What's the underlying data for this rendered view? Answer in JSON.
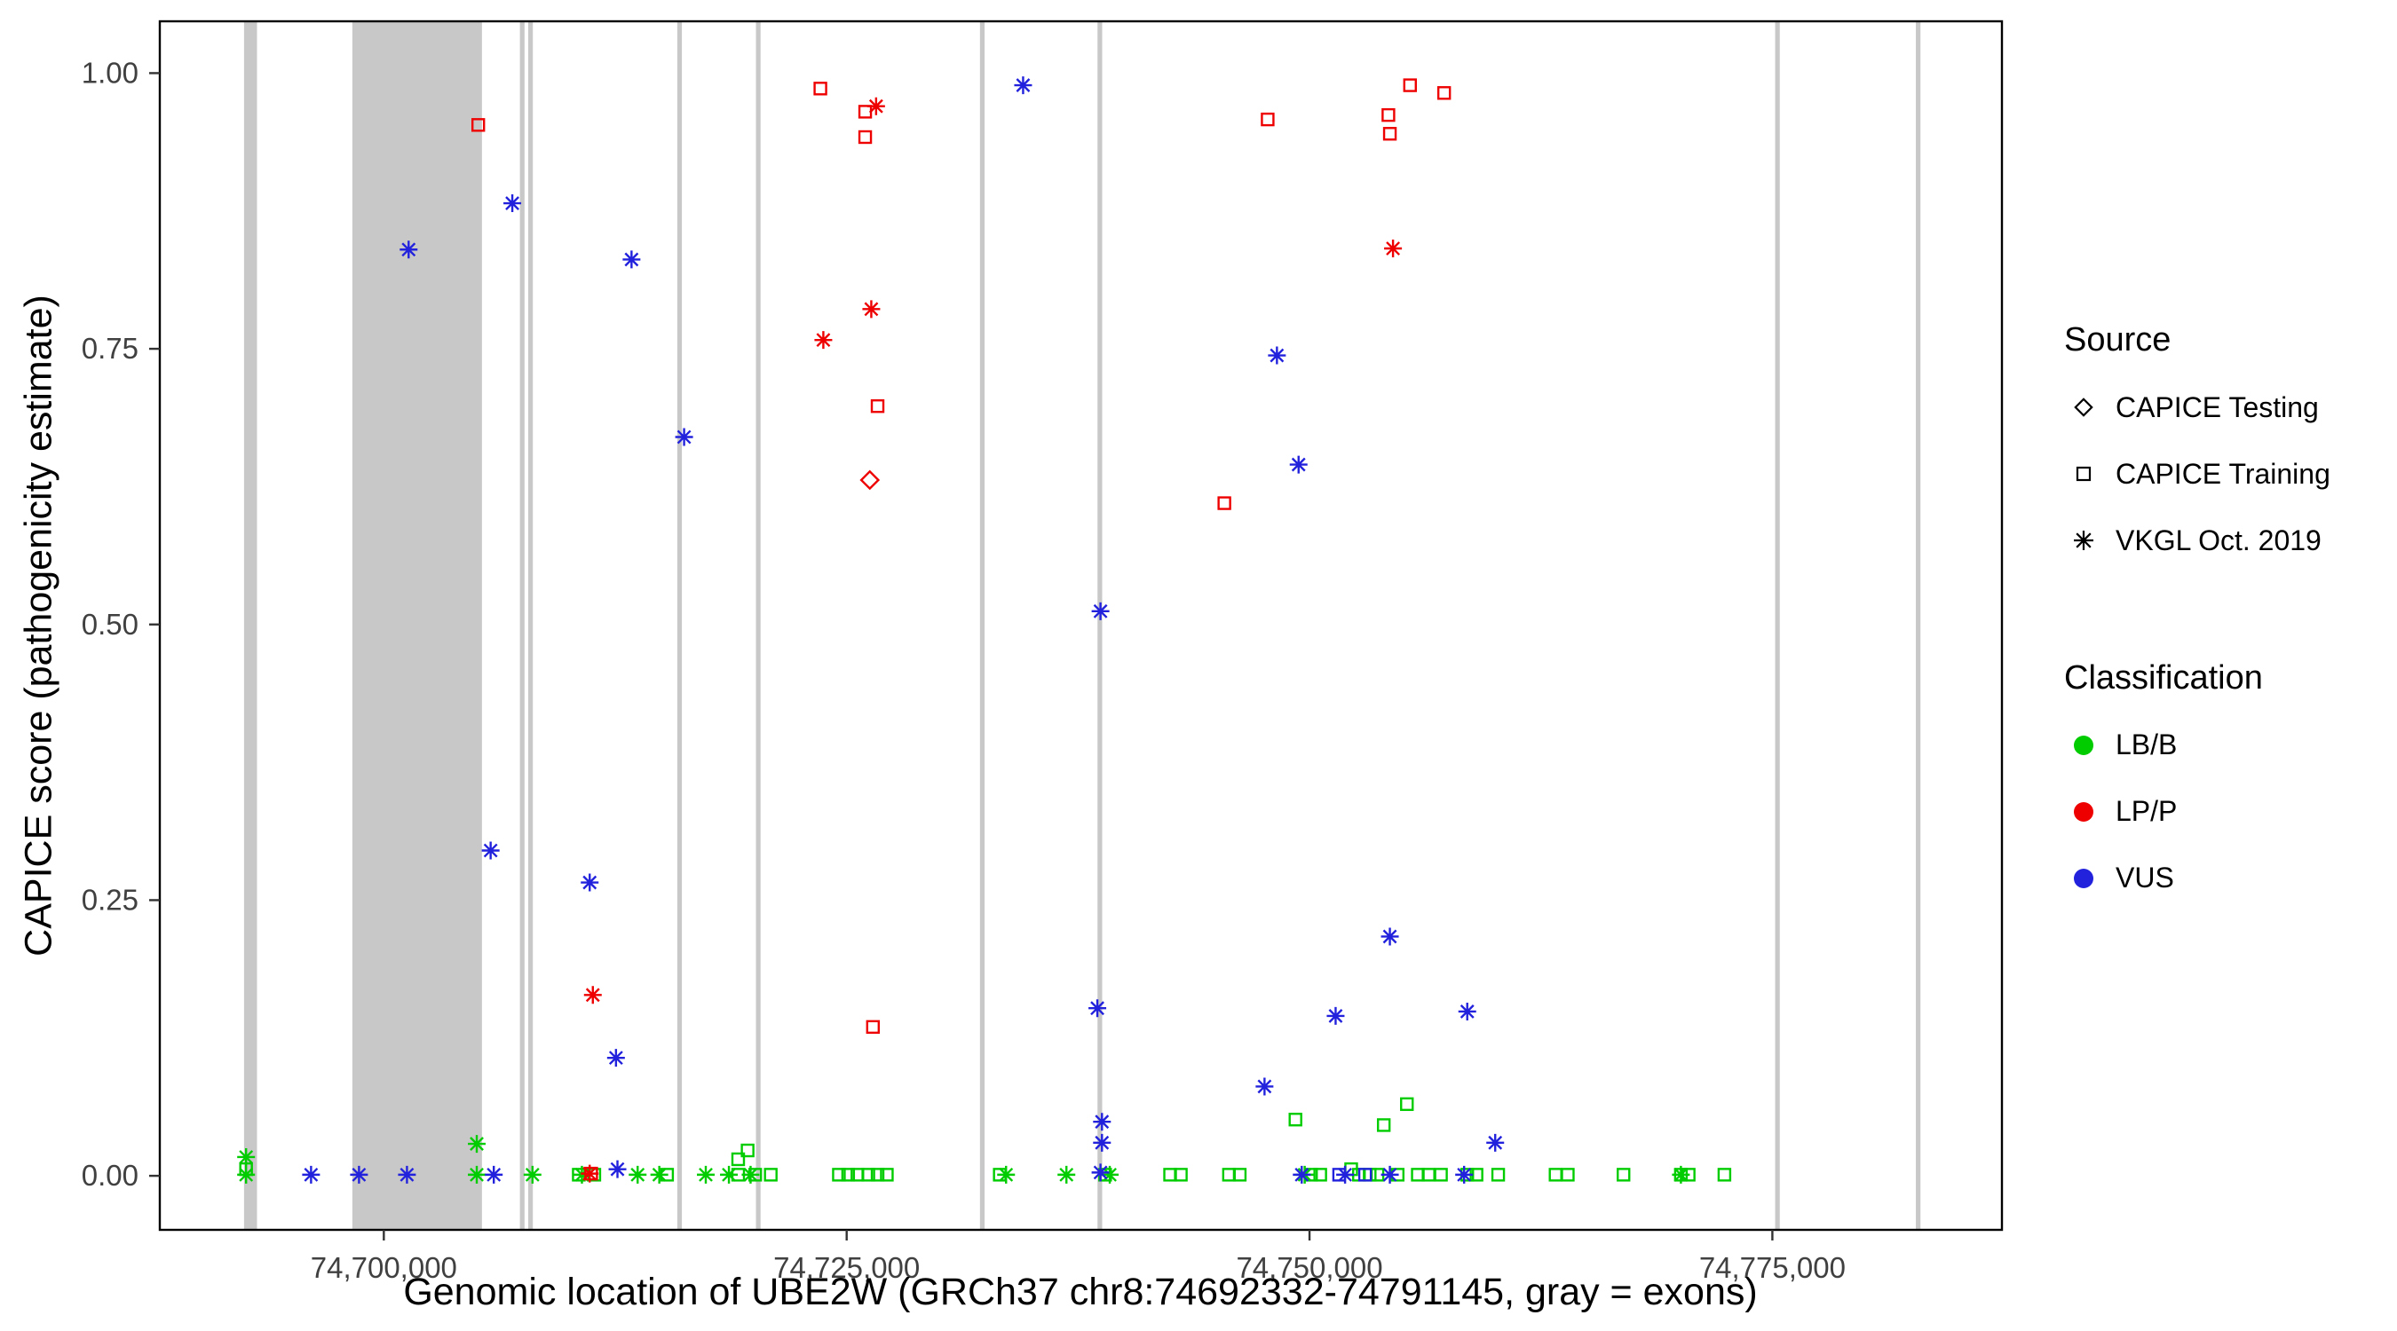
{
  "chart_data": {
    "type": "scatter",
    "title": "",
    "xlabel": "Genomic location of UBE2W (GRCh37 chr8:74692332-74791145, gray = exons)",
    "ylabel": "CAPICE score (pathogenicity estimate)",
    "x_domain": [
      74687900,
      74787400
    ],
    "y_domain": [
      -0.049,
      1.047
    ],
    "x_ticks": [
      {
        "value": 74700000,
        "label": "74,700,000"
      },
      {
        "value": 74725000,
        "label": "74,725,000"
      },
      {
        "value": 74750000,
        "label": "74,750,000"
      },
      {
        "value": 74775000,
        "label": "74,775,000"
      }
    ],
    "y_ticks": [
      {
        "value": 0.0,
        "label": "0.00"
      },
      {
        "value": 0.25,
        "label": "0.25"
      },
      {
        "value": 0.5,
        "label": "0.50"
      },
      {
        "value": 0.75,
        "label": "0.75"
      },
      {
        "value": 1.0,
        "label": "1.00"
      }
    ],
    "grid": false,
    "legend_position": "right",
    "colors": {
      "LB/B": "#00CC00",
      "LP/P": "#EE0000",
      "VUS": "#2222DD",
      "exon": "#C8C8C8"
    },
    "exons": [
      {
        "start": 74692450,
        "end": 74693150
      },
      {
        "start": 74698300,
        "end": 74705300
      },
      {
        "start": 74707350,
        "end": 74707600
      },
      {
        "start": 74707800,
        "end": 74708050
      },
      {
        "start": 74715850,
        "end": 74716100
      },
      {
        "start": 74720100,
        "end": 74720350
      },
      {
        "start": 74732200,
        "end": 74732450
      },
      {
        "start": 74738550,
        "end": 74738800
      },
      {
        "start": 74775150,
        "end": 74775400
      },
      {
        "start": 74782750,
        "end": 74783000
      }
    ],
    "point_format": [
      "x_genomic_position",
      "y_capice_score",
      "source",
      "classification"
    ],
    "points": [
      [
        74692560,
        0.006,
        "training",
        "LB/B"
      ],
      [
        74710530,
        0.001,
        "training",
        "LB/B"
      ],
      [
        74711370,
        0.001,
        "training",
        "LB/B"
      ],
      [
        74715300,
        0.001,
        "training",
        "LB/B"
      ],
      [
        74719140,
        0.015,
        "training",
        "LB/B"
      ],
      [
        74719650,
        0.023,
        "training",
        "LB/B"
      ],
      [
        74719140,
        0.001,
        "training",
        "LB/B"
      ],
      [
        74720060,
        0.001,
        "training",
        "LB/B"
      ],
      [
        74720900,
        0.001,
        "training",
        "LB/B"
      ],
      [
        74724580,
        0.001,
        "training",
        "LB/B"
      ],
      [
        74725080,
        0.001,
        "training",
        "LB/B"
      ],
      [
        74725580,
        0.001,
        "training",
        "LB/B"
      ],
      [
        74726170,
        0.001,
        "training",
        "LB/B"
      ],
      [
        74726670,
        0.001,
        "training",
        "LB/B"
      ],
      [
        74727170,
        0.001,
        "training",
        "LB/B"
      ],
      [
        74733270,
        0.001,
        "training",
        "LB/B"
      ],
      [
        74738960,
        0.001,
        "training",
        "LB/B"
      ],
      [
        74742470,
        0.001,
        "training",
        "LB/B"
      ],
      [
        74743050,
        0.001,
        "training",
        "LB/B"
      ],
      [
        74745650,
        0.001,
        "training",
        "LB/B"
      ],
      [
        74746230,
        0.001,
        "training",
        "LB/B"
      ],
      [
        74749240,
        0.051,
        "training",
        "LB/B"
      ],
      [
        74750080,
        0.001,
        "training",
        "LB/B"
      ],
      [
        74750580,
        0.001,
        "training",
        "LB/B"
      ],
      [
        74752250,
        0.006,
        "training",
        "LB/B"
      ],
      [
        74752670,
        0.001,
        "training",
        "LB/B"
      ],
      [
        74753250,
        0.001,
        "training",
        "LB/B"
      ],
      [
        74753670,
        0.001,
        "training",
        "LB/B"
      ],
      [
        74754010,
        0.046,
        "training",
        "LB/B"
      ],
      [
        74754760,
        0.001,
        "training",
        "LB/B"
      ],
      [
        74755260,
        0.065,
        "training",
        "LB/B"
      ],
      [
        74755850,
        0.001,
        "training",
        "LB/B"
      ],
      [
        74756430,
        0.001,
        "training",
        "LB/B"
      ],
      [
        74757100,
        0.001,
        "training",
        "LB/B"
      ],
      [
        74758520,
        0.001,
        "training",
        "LB/B"
      ],
      [
        74759020,
        0.001,
        "training",
        "LB/B"
      ],
      [
        74760190,
        0.001,
        "training",
        "LB/B"
      ],
      [
        74763290,
        0.001,
        "training",
        "LB/B"
      ],
      [
        74763950,
        0.001,
        "training",
        "LB/B"
      ],
      [
        74766960,
        0.001,
        "training",
        "LB/B"
      ],
      [
        74770060,
        0.001,
        "training",
        "LB/B"
      ],
      [
        74770480,
        0.001,
        "training",
        "LB/B"
      ],
      [
        74772410,
        0.001,
        "training",
        "LB/B"
      ],
      [
        74692560,
        0.017,
        "vkgl",
        "LB/B"
      ],
      [
        74692560,
        0.001,
        "vkgl",
        "LB/B"
      ],
      [
        74705020,
        0.029,
        "vkgl",
        "LB/B"
      ],
      [
        74705020,
        0.001,
        "vkgl",
        "LB/B"
      ],
      [
        74708030,
        0.001,
        "vkgl",
        "LB/B"
      ],
      [
        74710700,
        0.001,
        "vkgl",
        "LB/B"
      ],
      [
        74713710,
        0.001,
        "vkgl",
        "LB/B"
      ],
      [
        74714880,
        0.001,
        "vkgl",
        "LB/B"
      ],
      [
        74717390,
        0.001,
        "vkgl",
        "LB/B"
      ],
      [
        74718640,
        0.001,
        "vkgl",
        "LB/B"
      ],
      [
        74719810,
        0.001,
        "vkgl",
        "LB/B"
      ],
      [
        74733610,
        0.001,
        "vkgl",
        "LB/B"
      ],
      [
        74736870,
        0.001,
        "vkgl",
        "LB/B"
      ],
      [
        74739210,
        0.001,
        "vkgl",
        "LB/B"
      ],
      [
        74749740,
        0.001,
        "vkgl",
        "LB/B"
      ],
      [
        74770060,
        0.001,
        "vkgl",
        "LB/B"
      ],
      [
        74701340,
        0.84,
        "vkgl",
        "VUS"
      ],
      [
        74706940,
        0.882,
        "vkgl",
        "VUS"
      ],
      [
        74713380,
        0.831,
        "vkgl",
        "VUS"
      ],
      [
        74716220,
        0.67,
        "vkgl",
        "VUS"
      ],
      [
        74734530,
        0.989,
        "vkgl",
        "VUS"
      ],
      [
        74738710,
        0.512,
        "vkgl",
        "VUS"
      ],
      [
        74748240,
        0.744,
        "vkgl",
        "VUS"
      ],
      [
        74749410,
        0.645,
        "vkgl",
        "VUS"
      ],
      [
        74705770,
        0.295,
        "vkgl",
        "VUS"
      ],
      [
        74711120,
        0.266,
        "vkgl",
        "VUS"
      ],
      [
        74712540,
        0.107,
        "vkgl",
        "VUS"
      ],
      [
        74738540,
        0.152,
        "vkgl",
        "VUS"
      ],
      [
        74738790,
        0.049,
        "vkgl",
        "VUS"
      ],
      [
        74738790,
        0.03,
        "vkgl",
        "VUS"
      ],
      [
        74747570,
        0.081,
        "vkgl",
        "VUS"
      ],
      [
        74751410,
        0.145,
        "vkgl",
        "VUS"
      ],
      [
        74754340,
        0.217,
        "vkgl",
        "VUS"
      ],
      [
        74758520,
        0.149,
        "vkgl",
        "VUS"
      ],
      [
        74760030,
        0.03,
        "vkgl",
        "VUS"
      ],
      [
        74696070,
        0.001,
        "vkgl",
        "VUS"
      ],
      [
        74698660,
        0.001,
        "vkgl",
        "VUS"
      ],
      [
        74701250,
        0.001,
        "vkgl",
        "VUS"
      ],
      [
        74705940,
        0.001,
        "vkgl",
        "VUS"
      ],
      [
        74712620,
        0.006,
        "vkgl",
        "VUS"
      ],
      [
        74749580,
        0.001,
        "vkgl",
        "VUS"
      ],
      [
        74751920,
        0.001,
        "vkgl",
        "VUS"
      ],
      [
        74754340,
        0.001,
        "vkgl",
        "VUS"
      ],
      [
        74758350,
        0.001,
        "vkgl",
        "VUS"
      ],
      [
        74738710,
        0.003,
        "vkgl",
        "VUS"
      ],
      [
        74751600,
        0.001,
        "training",
        "VUS"
      ],
      [
        74753000,
        0.001,
        "training",
        "VUS"
      ],
      [
        74705100,
        0.953,
        "training",
        "LP/P"
      ],
      [
        74723580,
        0.986,
        "training",
        "LP/P"
      ],
      [
        74726000,
        0.965,
        "training",
        "LP/P"
      ],
      [
        74726000,
        0.942,
        "training",
        "LP/P"
      ],
      [
        74726670,
        0.698,
        "training",
        "LP/P"
      ],
      [
        74726420,
        0.135,
        "training",
        "LP/P"
      ],
      [
        74747740,
        0.958,
        "training",
        "LP/P"
      ],
      [
        74754260,
        0.962,
        "training",
        "LP/P"
      ],
      [
        74754340,
        0.945,
        "training",
        "LP/P"
      ],
      [
        74755430,
        0.989,
        "training",
        "LP/P"
      ],
      [
        74757270,
        0.982,
        "training",
        "LP/P"
      ],
      [
        74745400,
        0.61,
        "training",
        "LP/P"
      ],
      [
        74711200,
        0.002,
        "training",
        "LP/P"
      ],
      [
        74723740,
        0.758,
        "vkgl",
        "LP/P"
      ],
      [
        74726330,
        0.786,
        "vkgl",
        "LP/P"
      ],
      [
        74726590,
        0.97,
        "vkgl",
        "LP/P"
      ],
      [
        74754510,
        0.841,
        "vkgl",
        "LP/P"
      ],
      [
        74711290,
        0.164,
        "vkgl",
        "LP/P"
      ],
      [
        74711120,
        0.002,
        "vkgl",
        "LP/P"
      ],
      [
        74726250,
        0.631,
        "testing",
        "LP/P"
      ]
    ]
  },
  "legend": {
    "source": {
      "title": "Source",
      "items": [
        {
          "label": "CAPICE Testing",
          "shape": "diamond"
        },
        {
          "label": "CAPICE Training",
          "shape": "square"
        },
        {
          "label": "VKGL Oct. 2019",
          "shape": "asterisk"
        }
      ]
    },
    "classification": {
      "title": "Classification",
      "items": [
        {
          "label": "LB/B",
          "color": "#00CC00"
        },
        {
          "label": "LP/P",
          "color": "#EE0000"
        },
        {
          "label": "VUS",
          "color": "#2222DD"
        }
      ]
    }
  }
}
